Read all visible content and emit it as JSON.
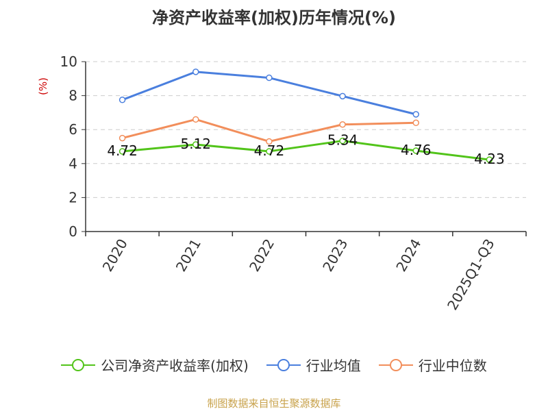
{
  "chart_data": {
    "type": "line",
    "title": "净资产收益率(加权)历年情况(%)",
    "ylabel": "(%)",
    "xlabel": "",
    "ylim": [
      0,
      10
    ],
    "yticks": [
      0,
      2,
      4,
      6,
      8,
      10
    ],
    "categories": [
      "2020",
      "2021",
      "2022",
      "2023",
      "2024",
      "2025Q1-Q3"
    ],
    "grid": true,
    "legend_position": "bottom",
    "series": [
      {
        "name": "公司净资产收益率(加权)",
        "color": "#52c41a",
        "values": [
          4.72,
          5.12,
          4.72,
          5.34,
          4.76,
          4.23
        ],
        "show_labels": true
      },
      {
        "name": "行业均值",
        "color": "#4a7fde",
        "values": [
          7.75,
          9.4,
          9.05,
          7.97,
          6.9,
          null
        ],
        "show_labels": false
      },
      {
        "name": "行业中位数",
        "color": "#f28e5b",
        "values": [
          5.5,
          6.6,
          5.3,
          6.3,
          6.4,
          null
        ],
        "show_labels": false
      }
    ]
  },
  "source": "制图数据来自恒生聚源数据库"
}
